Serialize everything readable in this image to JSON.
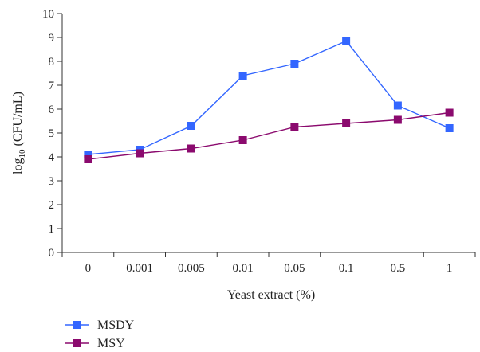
{
  "chart_data": {
    "type": "line",
    "categories": [
      "0",
      "0.001",
      "0.005",
      "0.01",
      "0.05",
      "0.1",
      "0.5",
      "1"
    ],
    "series": [
      {
        "name": "MSDY",
        "color": "#3366ff",
        "marker": "square",
        "values": [
          4.1,
          4.3,
          5.3,
          7.4,
          7.9,
          8.85,
          6.15,
          5.2
        ]
      },
      {
        "name": "MSY",
        "color": "#8b0a6e",
        "marker": "square",
        "values": [
          3.9,
          4.15,
          4.35,
          4.7,
          5.25,
          5.4,
          5.55,
          5.85
        ]
      }
    ],
    "xlabel": "Yeast extract (%)",
    "ylabel_base": "log",
    "ylabel_sub": "10",
    "ylabel_rest": " (CFU/mL)",
    "ylim": [
      0,
      10
    ],
    "yticks": [
      0,
      1,
      2,
      3,
      4,
      5,
      6,
      7,
      8,
      9,
      10
    ],
    "grid": false,
    "legend_position": "bottom-left"
  }
}
